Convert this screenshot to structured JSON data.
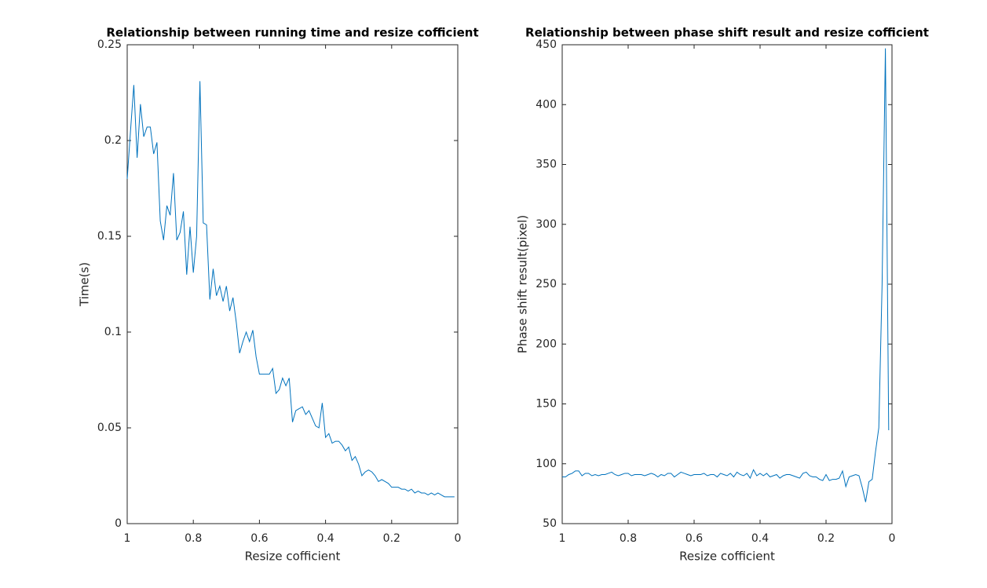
{
  "chart_data": [
    {
      "type": "line",
      "title": "Relationship between running time and resize cofficient",
      "x_label": "Resize cofficient",
      "y_label": "Time(s)",
      "xlim": [
        1,
        0
      ],
      "xticks": [
        1,
        0.8,
        0.6,
        0.4,
        0.2,
        0
      ],
      "ylim": [
        0,
        0.25
      ],
      "yticks": [
        0,
        0.05,
        0.1,
        0.15,
        0.2,
        0.25
      ],
      "series": [
        {
          "color": "#0072bd",
          "x": [
            1.0,
            0.99,
            0.98,
            0.97,
            0.96,
            0.95,
            0.94,
            0.93,
            0.92,
            0.91,
            0.9,
            0.89,
            0.88,
            0.87,
            0.86,
            0.85,
            0.84,
            0.83,
            0.82,
            0.81,
            0.8,
            0.79,
            0.78,
            0.77,
            0.76,
            0.75,
            0.74,
            0.73,
            0.72,
            0.71,
            0.7,
            0.69,
            0.68,
            0.67,
            0.66,
            0.65,
            0.64,
            0.63,
            0.62,
            0.61,
            0.6,
            0.59,
            0.58,
            0.57,
            0.56,
            0.55,
            0.54,
            0.53,
            0.52,
            0.51,
            0.5,
            0.49,
            0.48,
            0.47,
            0.46,
            0.45,
            0.44,
            0.43,
            0.42,
            0.41,
            0.4,
            0.39,
            0.38,
            0.37,
            0.36,
            0.35,
            0.34,
            0.33,
            0.32,
            0.31,
            0.3,
            0.29,
            0.28,
            0.27,
            0.26,
            0.25,
            0.24,
            0.23,
            0.22,
            0.21,
            0.2,
            0.19,
            0.18,
            0.17,
            0.16,
            0.15,
            0.14,
            0.13,
            0.12,
            0.11,
            0.1,
            0.09,
            0.08,
            0.07,
            0.06,
            0.05,
            0.04,
            0.03,
            0.02,
            0.01
          ],
          "values": [
            0.18,
            0.205,
            0.229,
            0.191,
            0.219,
            0.202,
            0.207,
            0.207,
            0.193,
            0.199,
            0.158,
            0.148,
            0.166,
            0.161,
            0.183,
            0.148,
            0.152,
            0.163,
            0.13,
            0.155,
            0.131,
            0.15,
            0.231,
            0.157,
            0.156,
            0.117,
            0.133,
            0.119,
            0.124,
            0.116,
            0.124,
            0.111,
            0.118,
            0.105,
            0.089,
            0.095,
            0.1,
            0.095,
            0.101,
            0.087,
            0.078,
            0.078,
            0.078,
            0.078,
            0.081,
            0.068,
            0.07,
            0.076,
            0.072,
            0.076,
            0.053,
            0.059,
            0.06,
            0.061,
            0.057,
            0.059,
            0.055,
            0.051,
            0.05,
            0.063,
            0.045,
            0.047,
            0.042,
            0.043,
            0.043,
            0.041,
            0.038,
            0.04,
            0.033,
            0.035,
            0.031,
            0.025,
            0.027,
            0.028,
            0.027,
            0.025,
            0.022,
            0.023,
            0.022,
            0.021,
            0.019,
            0.019,
            0.019,
            0.018,
            0.018,
            0.017,
            0.018,
            0.016,
            0.017,
            0.016,
            0.016,
            0.015,
            0.016,
            0.015,
            0.016,
            0.015,
            0.014,
            0.014,
            0.014,
            0.014
          ]
        }
      ]
    },
    {
      "type": "line",
      "title": "Relationship between phase shift result and resize cofficient",
      "x_label": "Resize cofficient",
      "y_label": "Phase shift result(pixel)",
      "xlim": [
        1,
        0
      ],
      "xticks": [
        1,
        0.8,
        0.6,
        0.4,
        0.2,
        0
      ],
      "ylim": [
        50,
        450
      ],
      "yticks": [
        50,
        100,
        150,
        200,
        250,
        300,
        350,
        400,
        450
      ],
      "series": [
        {
          "color": "#0072bd",
          "x": [
            1.0,
            0.99,
            0.98,
            0.97,
            0.96,
            0.95,
            0.94,
            0.93,
            0.92,
            0.91,
            0.9,
            0.89,
            0.88,
            0.87,
            0.86,
            0.85,
            0.84,
            0.83,
            0.82,
            0.81,
            0.8,
            0.79,
            0.78,
            0.77,
            0.76,
            0.75,
            0.74,
            0.73,
            0.72,
            0.71,
            0.7,
            0.69,
            0.68,
            0.67,
            0.66,
            0.65,
            0.64,
            0.63,
            0.62,
            0.61,
            0.6,
            0.59,
            0.58,
            0.57,
            0.56,
            0.55,
            0.54,
            0.53,
            0.52,
            0.51,
            0.5,
            0.49,
            0.48,
            0.47,
            0.46,
            0.45,
            0.44,
            0.43,
            0.42,
            0.41,
            0.4,
            0.39,
            0.38,
            0.37,
            0.36,
            0.35,
            0.34,
            0.33,
            0.32,
            0.31,
            0.3,
            0.29,
            0.28,
            0.27,
            0.26,
            0.25,
            0.24,
            0.23,
            0.22,
            0.21,
            0.2,
            0.19,
            0.18,
            0.17,
            0.16,
            0.15,
            0.14,
            0.13,
            0.12,
            0.11,
            0.1,
            0.09,
            0.08,
            0.07,
            0.06,
            0.05,
            0.04,
            0.03,
            0.02,
            0.01
          ],
          "values": [
            89,
            89,
            91,
            92,
            94,
            94,
            90,
            92,
            92,
            90,
            91,
            90,
            91,
            91,
            92,
            93,
            91,
            90,
            91,
            92,
            92,
            90,
            91,
            91,
            91,
            90,
            91,
            92,
            91,
            89,
            91,
            90,
            92,
            92,
            89,
            91,
            93,
            92,
            91,
            90,
            91,
            91,
            91,
            92,
            90,
            91,
            91,
            89,
            92,
            91,
            90,
            92,
            89,
            93,
            91,
            90,
            92,
            88,
            95,
            90,
            92,
            90,
            92,
            89,
            90,
            91,
            88,
            90,
            91,
            91,
            90,
            89,
            88,
            92,
            93,
            90,
            89,
            89,
            87,
            86,
            91,
            86,
            87,
            87,
            88,
            94,
            81,
            89,
            90,
            91,
            90,
            80,
            68,
            85,
            87,
            110,
            130,
            250,
            447,
            128
          ]
        }
      ]
    }
  ]
}
